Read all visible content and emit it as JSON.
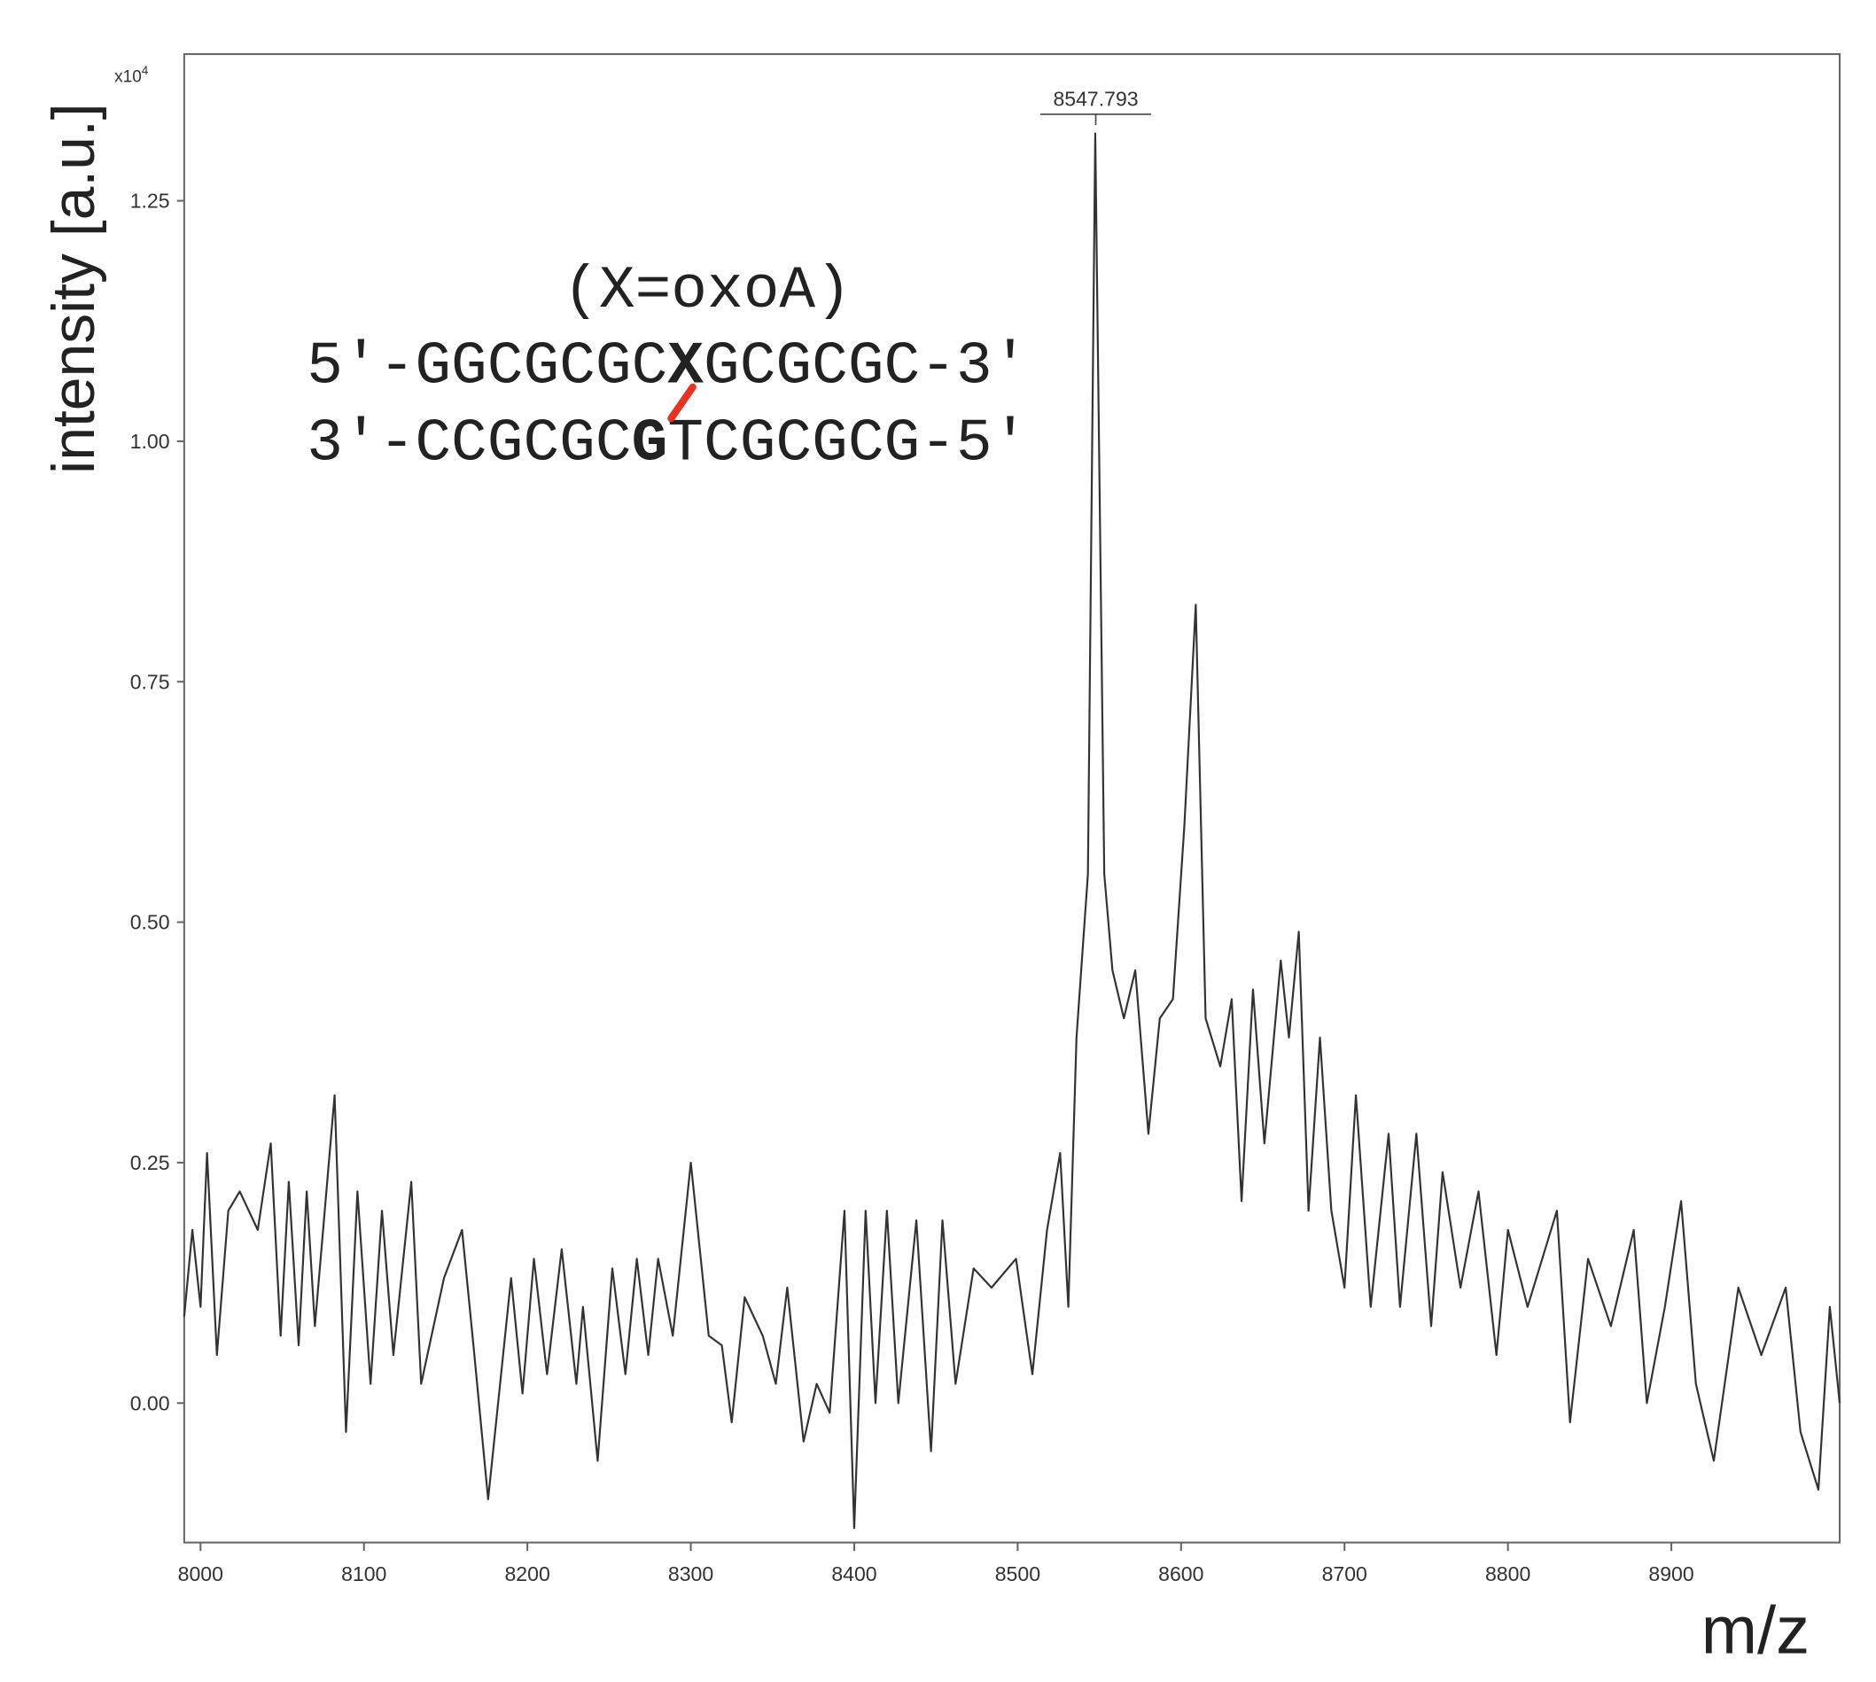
{
  "chart_data": {
    "type": "line",
    "y_label": "intensity [a.u.]",
    "y_multiplier": {
      "base": "x10",
      "exponent": "4"
    },
    "x_label": "m/z",
    "color": "#333333",
    "xlim": [
      7990,
      9003
    ],
    "ylim": [
      -0.145,
      1.4025
    ],
    "xticks": [
      8000,
      8100,
      8200,
      8300,
      8400,
      8500,
      8600,
      8700,
      8800,
      8900
    ],
    "yticks": [
      {
        "value": 0,
        "label": "0.00"
      },
      {
        "value": 0.25,
        "label": "0.25"
      },
      {
        "value": 0.5,
        "label": "0.50"
      },
      {
        "value": 0.75,
        "label": "0.75"
      },
      {
        "value": 1,
        "label": "1.00"
      },
      {
        "value": 1.25,
        "label": "1.25"
      }
    ],
    "peak_labels": [
      {
        "x": 8547.793,
        "label": "8547.793"
      }
    ],
    "annotation": {
      "title": "(X=oxoA)",
      "strand1": {
        "pre": "5′-GGCGCGC",
        "bold": "X",
        "post": "GCGCGC-3′"
      },
      "strand2": {
        "pre": "3′-CCGCGC",
        "bold": "G",
        "post": "TCGCGCG-5′"
      }
    },
    "x": [
      7990,
      7995,
      8000,
      8004,
      8010,
      8017,
      8024,
      8035,
      8043,
      8049,
      8054,
      8060,
      8065,
      8070,
      8082,
      8089,
      8096,
      8104,
      8111,
      8118,
      8129,
      8135,
      8149,
      8160,
      8167,
      8176,
      8190,
      8197,
      8204,
      8212,
      8221,
      8230,
      8234,
      8243,
      8252,
      8260,
      8267,
      8274,
      8280,
      8289,
      8300,
      8311,
      8319,
      8325,
      8333,
      8344,
      8352,
      8359,
      8369,
      8377,
      8385,
      8394,
      8400,
      8407,
      8413,
      8420,
      8427,
      8438,
      8447,
      8454,
      8462,
      8473,
      8484,
      8499,
      8509,
      8518,
      8526,
      8531,
      8536,
      8543,
      8547.5,
      8553,
      8558,
      8565,
      8572,
      8580,
      8587,
      8595,
      8602,
      8609,
      8615,
      8624,
      8631,
      8637,
      8644,
      8651,
      8661,
      8666,
      8672,
      8678,
      8685,
      8692,
      8700,
      8707,
      8716,
      8727,
      8734,
      8744,
      8753,
      8760,
      8771,
      8782,
      8793,
      8800,
      8812,
      8830,
      8838,
      8849,
      8863,
      8877,
      8885,
      8896,
      8906,
      8915,
      8926,
      8941,
      8955,
      8970,
      8979,
      8990,
      8997,
      9003
    ],
    "values": [
      0.09,
      0.18,
      0.1,
      0.26,
      0.05,
      0.2,
      0.22,
      0.18,
      0.27,
      0.07,
      0.23,
      0.06,
      0.22,
      0.08,
      0.32,
      -0.03,
      0.22,
      0.02,
      0.2,
      0.05,
      0.23,
      0.02,
      0.13,
      0.18,
      0.06,
      -0.1,
      0.13,
      0.01,
      0.15,
      0.03,
      0.16,
      0.02,
      0.1,
      -0.06,
      0.14,
      0.03,
      0.15,
      0.05,
      0.15,
      0.07,
      0.25,
      0.07,
      0.06,
      -0.02,
      0.11,
      0.07,
      0.02,
      0.12,
      -0.04,
      0.02,
      -0.01,
      0.2,
      -0.13,
      0.2,
      0.0,
      0.2,
      0.0,
      0.19,
      -0.05,
      0.19,
      0.02,
      0.14,
      0.12,
      0.15,
      0.03,
      0.18,
      0.26,
      0.1,
      0.38,
      0.55,
      1.32,
      0.55,
      0.45,
      0.4,
      0.45,
      0.28,
      0.4,
      0.42,
      0.6,
      0.83,
      0.4,
      0.35,
      0.42,
      0.21,
      0.43,
      0.27,
      0.46,
      0.38,
      0.49,
      0.2,
      0.38,
      0.2,
      0.12,
      0.32,
      0.1,
      0.28,
      0.1,
      0.28,
      0.08,
      0.24,
      0.12,
      0.22,
      0.05,
      0.18,
      0.1,
      0.2,
      -0.02,
      0.15,
      0.08,
      0.18,
      0.0,
      0.1,
      0.21,
      0.02,
      -0.06,
      0.12,
      0.05,
      0.12,
      -0.03,
      -0.09,
      0.1,
      0.0
    ]
  }
}
